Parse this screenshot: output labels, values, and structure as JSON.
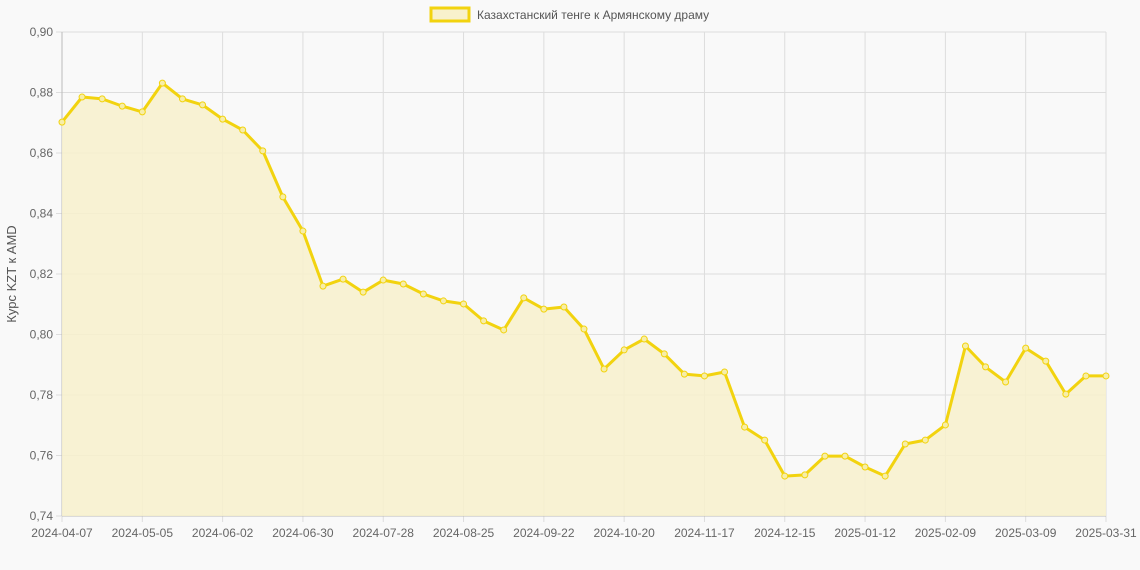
{
  "chart_data": {
    "type": "area",
    "title": "",
    "legend": {
      "position": "top",
      "entries": [
        "Казахстанский тенге к Армянскому драму"
      ]
    },
    "xlabel": "",
    "ylabel": "Курс KZT к AMD",
    "ylim": [
      0.74,
      0.9
    ],
    "yticks": [
      "0,74",
      "0,76",
      "0,78",
      "0,80",
      "0,82",
      "0,84",
      "0,86",
      "0,88",
      "0,90"
    ],
    "grid": true,
    "x_tick_labels": [
      "2024-04-07",
      "2024-05-05",
      "2024-06-02",
      "2024-06-30",
      "2024-07-28",
      "2024-08-25",
      "2024-09-22",
      "2024-10-20",
      "2024-11-17",
      "2024-12-15",
      "2025-01-12",
      "2025-02-09",
      "2025-03-09",
      "2025-03-31"
    ],
    "colors": {
      "line": "#f2d30f",
      "fill": "#f8f1cc",
      "background": "#f9f9f9",
      "grid": "#dddddd"
    },
    "series": [
      {
        "name": "Казахстанский тенге к Армянскому драму",
        "x": [
          "2024-04-07",
          "2024-04-14",
          "2024-04-21",
          "2024-04-28",
          "2024-05-05",
          "2024-05-12",
          "2024-05-19",
          "2024-05-26",
          "2024-06-02",
          "2024-06-09",
          "2024-06-16",
          "2024-06-23",
          "2024-06-30",
          "2024-07-07",
          "2024-07-14",
          "2024-07-21",
          "2024-07-28",
          "2024-08-04",
          "2024-08-11",
          "2024-08-18",
          "2024-08-25",
          "2024-09-01",
          "2024-09-08",
          "2024-09-15",
          "2024-09-22",
          "2024-09-29",
          "2024-10-06",
          "2024-10-13",
          "2024-10-20",
          "2024-10-27",
          "2024-11-03",
          "2024-11-10",
          "2024-11-17",
          "2024-11-24",
          "2024-12-01",
          "2024-12-08",
          "2024-12-15",
          "2024-12-22",
          "2024-12-29",
          "2025-01-05",
          "2025-01-12",
          "2025-01-19",
          "2025-01-26",
          "2025-02-02",
          "2025-02-09",
          "2025-02-16",
          "2025-02-23",
          "2025-03-02",
          "2025-03-09",
          "2025-03-16",
          "2025-03-23",
          "2025-03-30",
          "2025-03-31"
        ],
        "values": [
          0.8702,
          0.8785,
          0.8779,
          0.8755,
          0.8736,
          0.8831,
          0.8779,
          0.8759,
          0.8712,
          0.8676,
          0.8607,
          0.8455,
          0.8342,
          0.816,
          0.8183,
          0.814,
          0.818,
          0.8167,
          0.8134,
          0.8111,
          0.8101,
          0.8045,
          0.8015,
          0.8121,
          0.8084,
          0.8091,
          0.8018,
          0.7886,
          0.7949,
          0.7985,
          0.7936,
          0.7869,
          0.7863,
          0.7876,
          0.7694,
          0.7651,
          0.7532,
          0.7536,
          0.7598,
          0.7598,
          0.7562,
          0.7532,
          0.7638,
          0.7651,
          0.7701,
          0.7962,
          0.7893,
          0.7843,
          0.7955,
          0.7912,
          0.7803,
          0.7863,
          0.7863
        ]
      }
    ]
  }
}
